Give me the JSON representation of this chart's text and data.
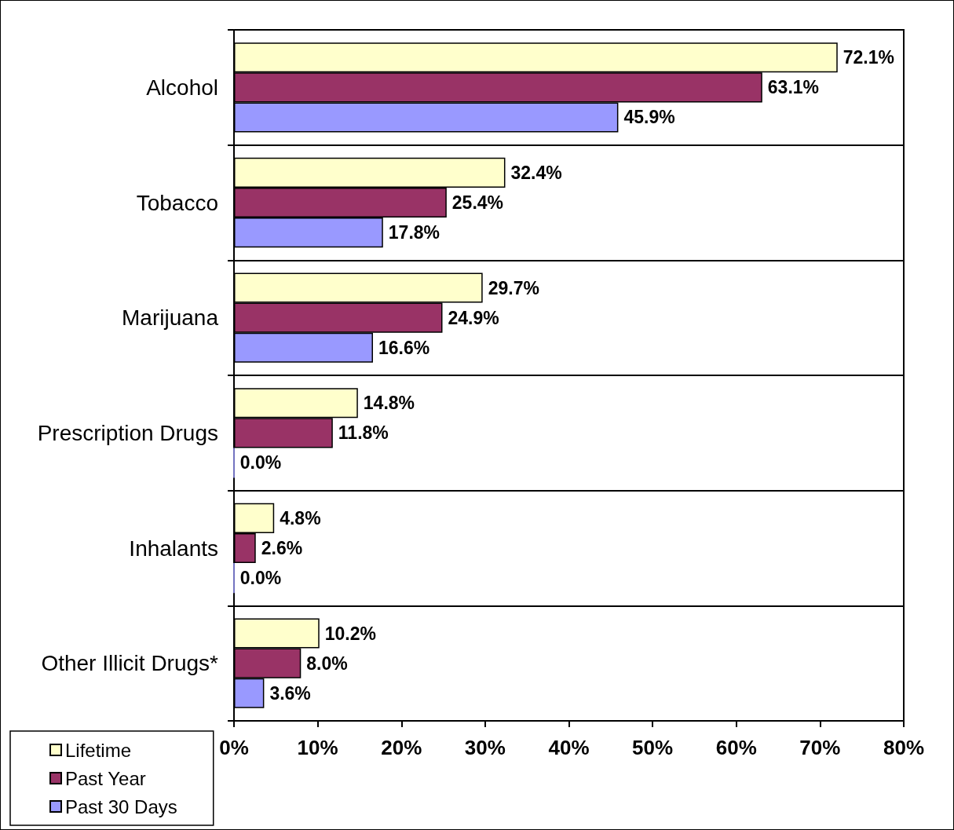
{
  "chart_data": {
    "type": "bar",
    "orientation": "horizontal",
    "categories": [
      "Alcohol",
      "Tobacco",
      "Marijuana",
      "Prescription Drugs",
      "Inhalants",
      "Other Illicit Drugs*"
    ],
    "series": [
      {
        "name": "Lifetime",
        "color": "#ffffcc",
        "values": [
          72.1,
          32.4,
          29.7,
          14.8,
          4.8,
          10.2
        ],
        "value_labels": [
          "72.1%",
          "32.4%",
          "29.7%",
          "14.8%",
          "4.8%",
          "10.2%"
        ]
      },
      {
        "name": "Past Year",
        "color": "#993366",
        "values": [
          63.1,
          25.4,
          24.9,
          11.8,
          2.6,
          8.0
        ],
        "value_labels": [
          "63.1%",
          "25.4%",
          "24.9%",
          "11.8%",
          "2.6%",
          "8.0%"
        ]
      },
      {
        "name": "Past 30 Days",
        "color": "#9999ff",
        "values": [
          45.9,
          17.8,
          16.6,
          0.0,
          0.0,
          3.6
        ],
        "value_labels": [
          "45.9%",
          "17.8%",
          "16.6%",
          "0.0%",
          "0.0%",
          "3.6%"
        ]
      }
    ],
    "xlim": [
      0,
      80
    ],
    "xticks": [
      {
        "value": 0,
        "label": "0%"
      },
      {
        "value": 10,
        "label": "10%"
      },
      {
        "value": 20,
        "label": "20%"
      },
      {
        "value": 30,
        "label": "30%"
      },
      {
        "value": 40,
        "label": "40%"
      },
      {
        "value": 50,
        "label": "50%"
      },
      {
        "value": 60,
        "label": "60%"
      },
      {
        "value": 70,
        "label": "70%"
      },
      {
        "value": 80,
        "label": "80%"
      }
    ],
    "grid": "y",
    "legend": "bottom left"
  }
}
